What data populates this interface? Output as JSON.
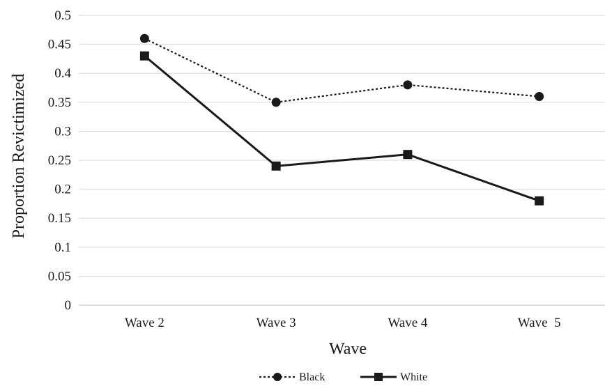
{
  "chart_data": {
    "type": "line",
    "title": "",
    "xlabel": "Wave",
    "ylabel": "Proportion Revictimized",
    "categories": [
      "Wave 2",
      "Wave 3",
      "Wave 4",
      "Wave  5"
    ],
    "ylim": [
      0,
      0.5
    ],
    "yticks": [
      "0",
      "0.05",
      "0.1",
      "0.15",
      "0.2",
      "0.25",
      "0.3",
      "0.35",
      "0.4",
      "0.45",
      "0.5"
    ],
    "grid": true,
    "legend_position": "bottom",
    "series": [
      {
        "name": "Black",
        "values": [
          0.46,
          0.35,
          0.38,
          0.36
        ],
        "line_style": "dotted",
        "marker": "circle",
        "color": "#1a1a1a"
      },
      {
        "name": "White",
        "values": [
          0.43,
          0.24,
          0.26,
          0.18
        ],
        "line_style": "solid",
        "marker": "square",
        "color": "#1a1a1a"
      }
    ]
  }
}
